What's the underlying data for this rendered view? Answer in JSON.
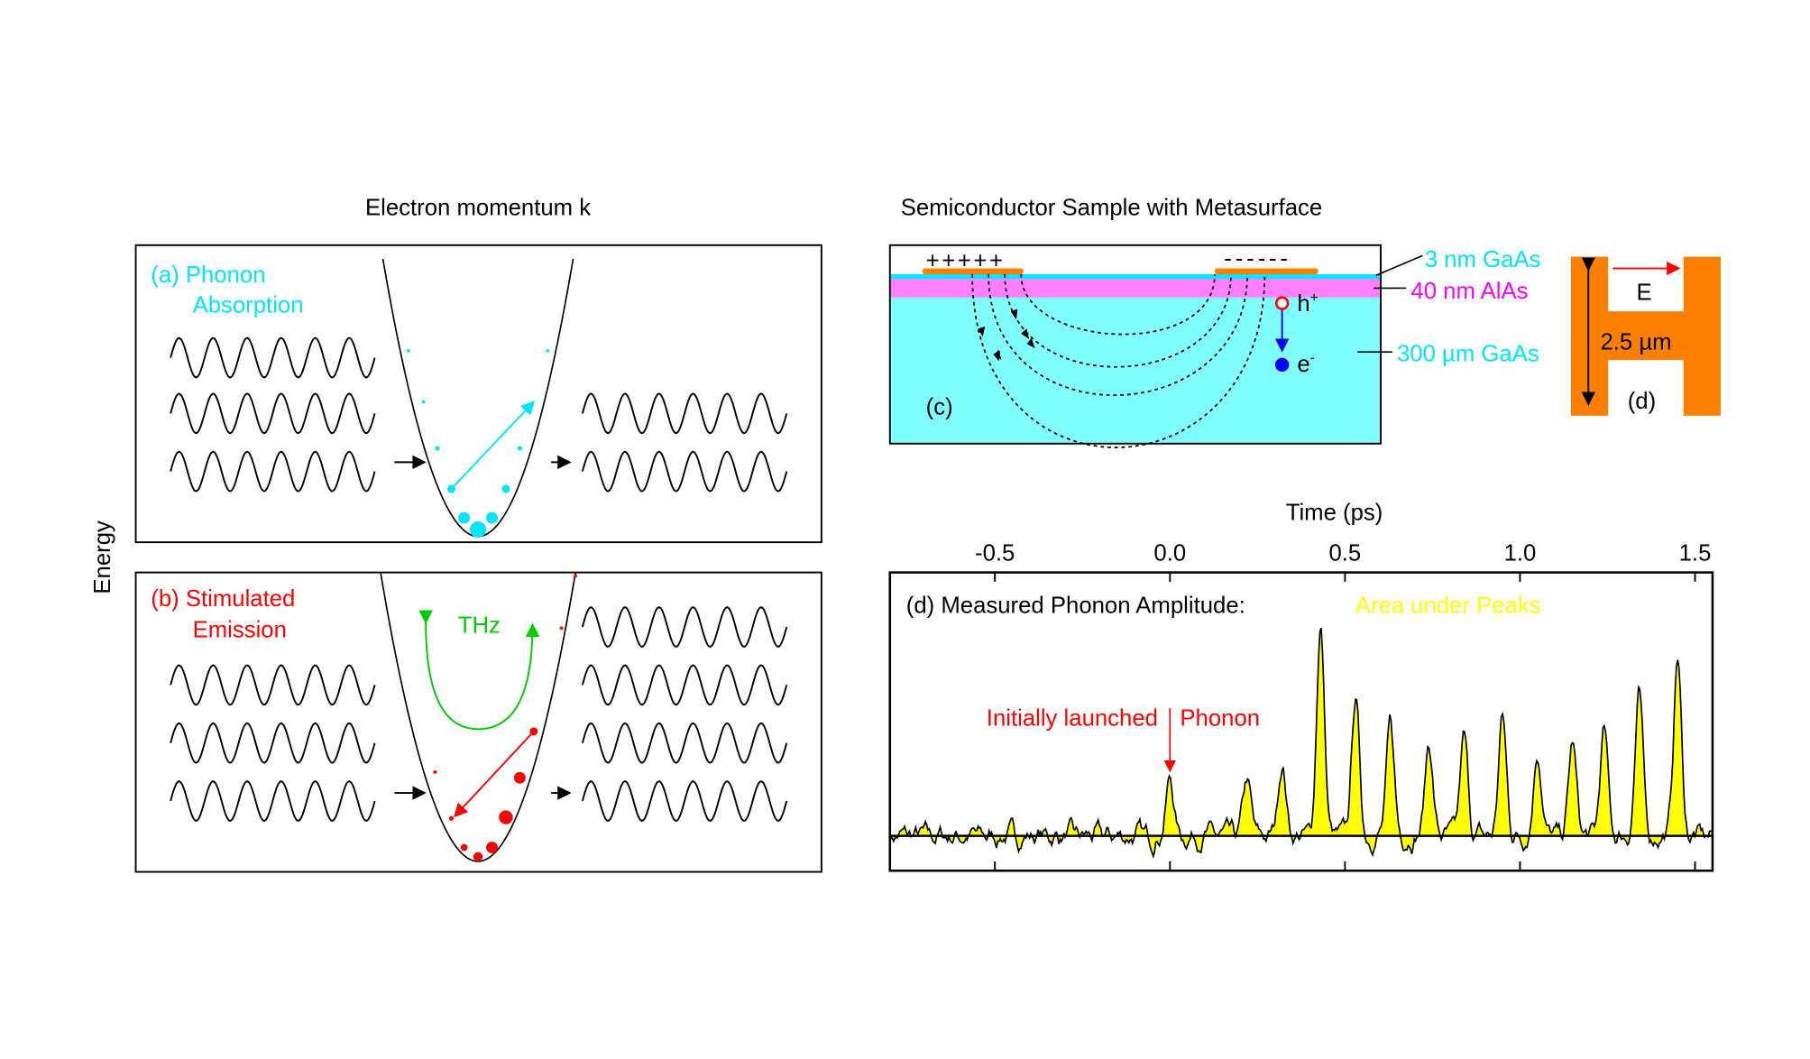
{
  "left": {
    "title": "Electron momentum  k",
    "y_label": "Energy",
    "panel_a": {
      "label_line1": "(a) Phonon",
      "label_line2": "Absorption",
      "color": "#00e5ff"
    },
    "panel_b": {
      "label_line1": "(b) Stimulated",
      "label_line2": "Emission",
      "color": "#ff0000",
      "thz_label": "THz",
      "thz_color": "#00e000"
    }
  },
  "sample": {
    "title": "Semiconductor Sample with Metasurface",
    "plus_signs": "+++++",
    "minus_signs": "------",
    "hole_label": "h",
    "hole_sup": "+",
    "electron_label": "e",
    "electron_sup": "-",
    "panel_label": "(c)",
    "layers": [
      {
        "label": "3 nm GaAs",
        "color": "#00e5ff"
      },
      {
        "label": "40 nm AlAs",
        "color": "#ff00ff"
      },
      {
        "label": "300 µm GaAs",
        "color": "#00e5ff"
      }
    ],
    "substrate_color": "#80ffff",
    "alas_color": "#ff80ff",
    "electrode_color": "#ff8000"
  },
  "metasurface": {
    "field_label": "E",
    "size_label": "2.5 µm",
    "panel_label": "(d)",
    "color": "#ff8000"
  },
  "chart_data": {
    "type": "area",
    "title": "(d) Measured Phonon Amplitude:",
    "legend": "Area under Peaks",
    "legend_color": "#ffff00",
    "xlabel": "Time (ps)",
    "xlim": [
      -0.8,
      1.55
    ],
    "ylim": [
      -0.15,
      1.135
    ],
    "x_ticks": [
      "-0.5",
      "0.0",
      "0.5",
      "1.0",
      "1.5"
    ],
    "x_tick_values": [
      -0.5,
      0.0,
      0.5,
      1.0,
      1.5
    ],
    "annotation": {
      "text_left": "Initially launched",
      "text_right": "Phonon",
      "x": 0.0,
      "color": "#ff0000"
    },
    "peaks": [
      {
        "t": 0.0,
        "h": 0.24
      },
      {
        "t": 0.22,
        "h": 0.24
      },
      {
        "t": 0.32,
        "h": 0.32
      },
      {
        "t": 0.43,
        "h": 0.9
      },
      {
        "t": 0.53,
        "h": 0.6
      },
      {
        "t": 0.63,
        "h": 0.47
      },
      {
        "t": 0.74,
        "h": 0.4
      },
      {
        "t": 0.84,
        "h": 0.42
      },
      {
        "t": 0.95,
        "h": 0.51
      },
      {
        "t": 1.05,
        "h": 0.37
      },
      {
        "t": 1.15,
        "h": 0.4
      },
      {
        "t": 1.24,
        "h": 0.45
      },
      {
        "t": 1.34,
        "h": 0.6
      },
      {
        "t": 1.45,
        "h": 0.77
      }
    ]
  }
}
